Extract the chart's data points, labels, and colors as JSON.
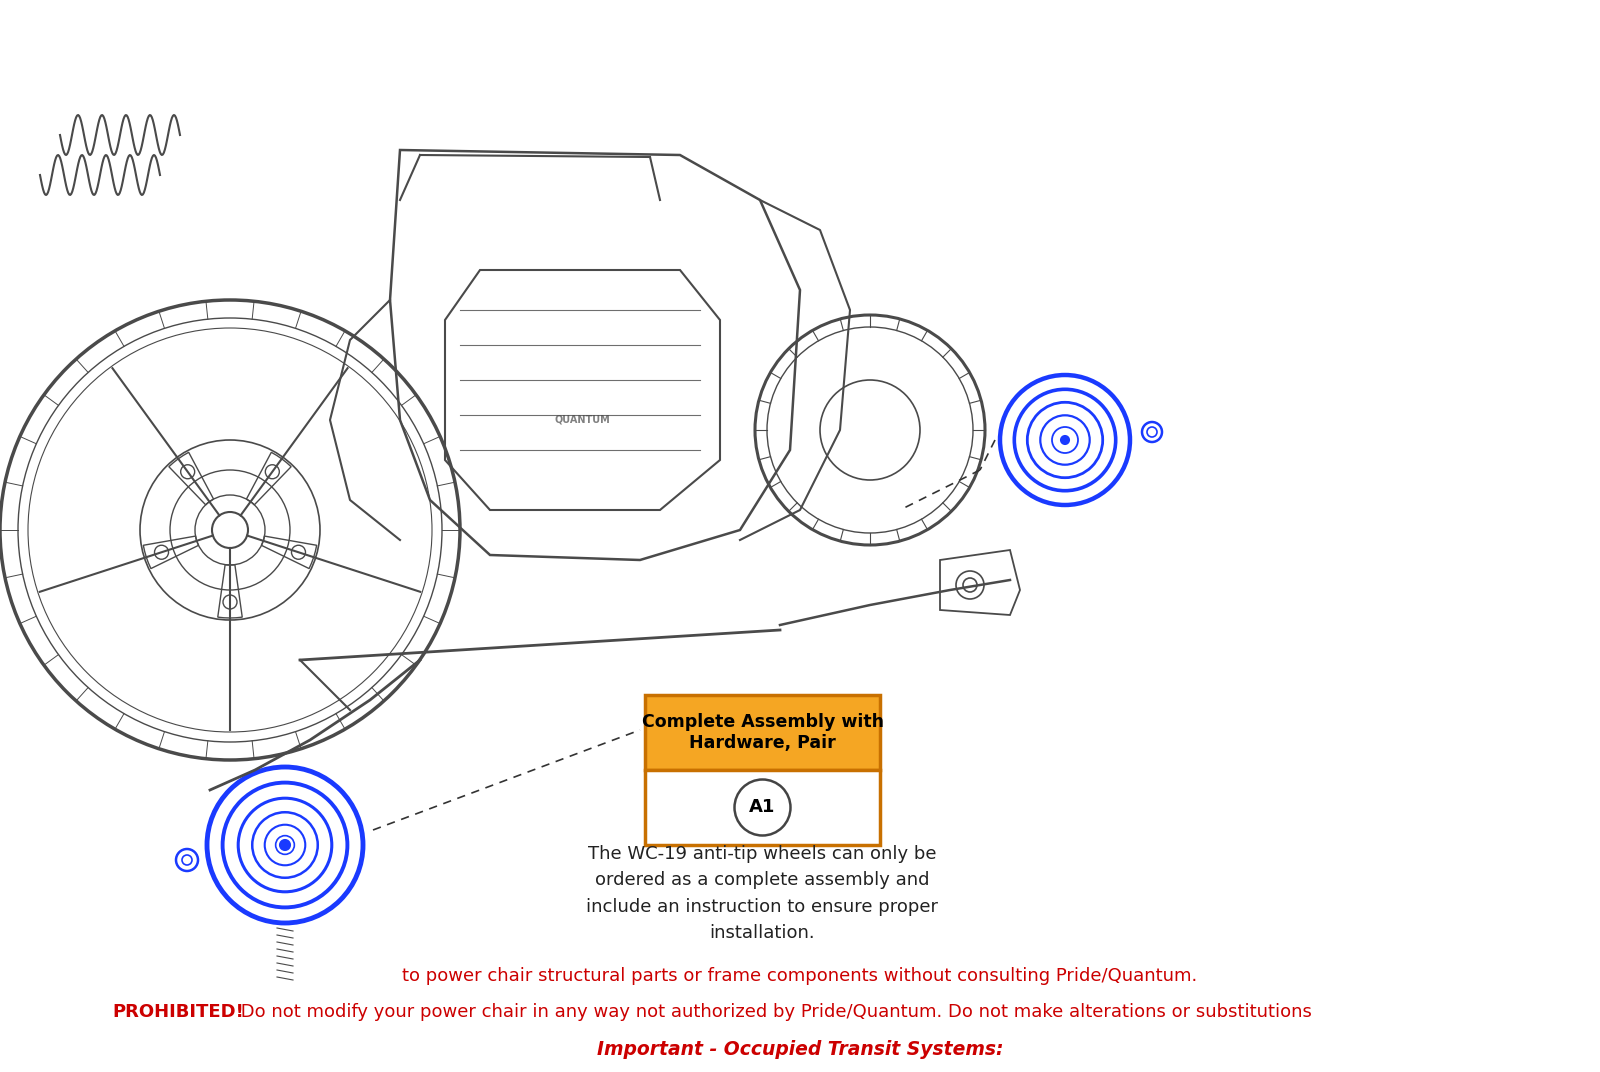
{
  "bg_color": "#ffffff",
  "title_line1": "Important - Occupied Transit Systems:",
  "title_line1_color": "#cc0000",
  "warning_bold": "PROHIBITED!",
  "warning_rest": " Do not modify your power chair in any way not authorized by Pride/Quantum. Do not make alterations or substitutions",
  "warning_line3": "to power chair structural parts or frame components without consulting Pride/Quantum.",
  "warning_color": "#cc0000",
  "box_label_top": "Complete Assembly with\nHardware, Pair",
  "box_label_top_bg": "#f5a623",
  "box_label_top_border": "#c87000",
  "box_label_bottom": "A1",
  "box_label_bottom_bg": "#ffffff",
  "box_label_bottom_border": "#c87000",
  "description_text": "The WC-19 anti-tip wheels can only be\nordered as a complete assembly and\ninclude an instruction to ensure proper\ninstallation.",
  "description_color": "#222222",
  "wheel_blue": "#1a3aff",
  "line_color": "#4a4a4a",
  "dashed_color": "#333333"
}
